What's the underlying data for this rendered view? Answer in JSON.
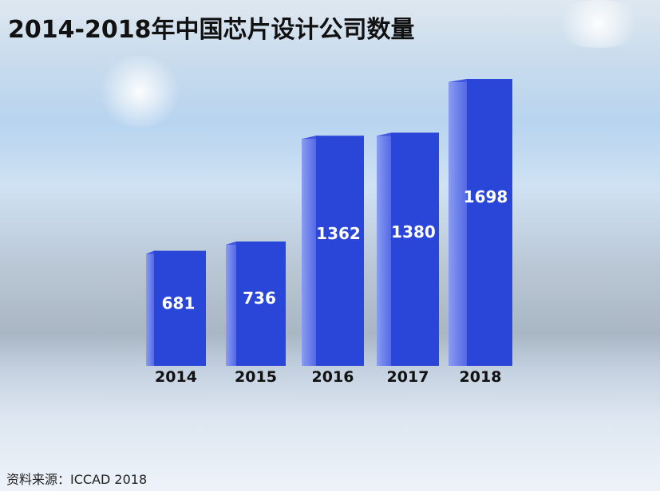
{
  "title": "2014-2018年中国芯片设计公司数量",
  "source": "资料来源：ICCAD 2018",
  "chart_data": {
    "type": "bar",
    "title": "2014-2018年中国芯片设计公司数量",
    "categories": [
      "2014",
      "2015",
      "2016",
      "2017",
      "2018"
    ],
    "values": [
      681,
      736,
      1362,
      1380,
      1698
    ],
    "data_labels": [
      "681",
      "736",
      "1362",
      "1380",
      "1698"
    ],
    "bar_color": "#2a46d8",
    "grid": false,
    "legend": "none",
    "style": "3d"
  }
}
